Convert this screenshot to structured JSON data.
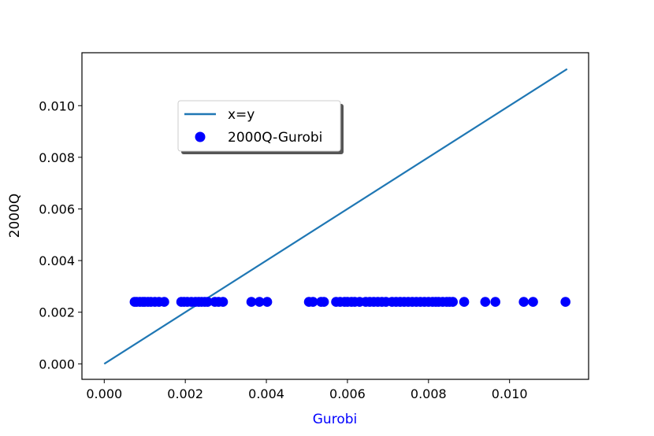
{
  "chart_data": {
    "type": "scatter",
    "xlabel": "Gurobi",
    "ylabel": "2000Q",
    "xlim": [
      -0.00055,
      0.01195
    ],
    "ylim": [
      -0.0006,
      0.01205
    ],
    "x_ticks": [
      0.0,
      0.002,
      0.004,
      0.006,
      0.008,
      0.01
    ],
    "x_tick_labels": [
      "0.000",
      "0.002",
      "0.004",
      "0.006",
      "0.008",
      "0.010"
    ],
    "y_ticks": [
      0.0,
      0.002,
      0.004,
      0.006,
      0.008,
      0.01
    ],
    "y_tick_labels": [
      "0.000",
      "0.002",
      "0.004",
      "0.006",
      "0.008",
      "0.010"
    ],
    "grid": false,
    "legend_position": "upper-left",
    "series": [
      {
        "name": "x=y",
        "kind": "line",
        "color": "#1f77b4",
        "x": [
          0.0,
          0.01142
        ],
        "y": [
          0.0,
          0.01142
        ]
      },
      {
        "name": "2000Q-Gurobi",
        "kind": "scatter",
        "color": "#0000ff",
        "x": [
          0.00075,
          0.0008,
          0.00088,
          0.00095,
          0.001,
          0.00108,
          0.00115,
          0.00125,
          0.00135,
          0.00148,
          0.0019,
          0.00197,
          0.00205,
          0.00215,
          0.00225,
          0.00233,
          0.0024,
          0.00248,
          0.00255,
          0.00273,
          0.00282,
          0.00293,
          0.00363,
          0.00383,
          0.00402,
          0.00505,
          0.00515,
          0.00535,
          0.00542,
          0.00572,
          0.00582,
          0.00593,
          0.006,
          0.0061,
          0.00618,
          0.0063,
          0.00645,
          0.00655,
          0.00665,
          0.00675,
          0.00685,
          0.00695,
          0.0071,
          0.0072,
          0.0073,
          0.0074,
          0.0075,
          0.0076,
          0.0077,
          0.0078,
          0.0079,
          0.008,
          0.0081,
          0.00818,
          0.00825,
          0.00835,
          0.00845,
          0.00852,
          0.0086,
          0.00888,
          0.0094,
          0.00965,
          0.01035,
          0.01058,
          0.01138
        ],
        "y": [
          0.0024,
          0.0024,
          0.0024,
          0.0024,
          0.0024,
          0.0024,
          0.0024,
          0.0024,
          0.0024,
          0.0024,
          0.0024,
          0.0024,
          0.0024,
          0.0024,
          0.0024,
          0.0024,
          0.0024,
          0.0024,
          0.0024,
          0.0024,
          0.0024,
          0.0024,
          0.0024,
          0.0024,
          0.0024,
          0.0024,
          0.0024,
          0.0024,
          0.0024,
          0.0024,
          0.0024,
          0.0024,
          0.0024,
          0.0024,
          0.0024,
          0.0024,
          0.0024,
          0.0024,
          0.0024,
          0.0024,
          0.0024,
          0.0024,
          0.0024,
          0.0024,
          0.0024,
          0.0024,
          0.0024,
          0.0024,
          0.0024,
          0.0024,
          0.0024,
          0.0024,
          0.0024,
          0.0024,
          0.0024,
          0.0024,
          0.0024,
          0.0024,
          0.0024,
          0.0024,
          0.0024,
          0.0024,
          0.0024,
          0.0024,
          0.0024
        ]
      }
    ],
    "xlabel_color": "#0000ff",
    "ylabel_color": "#000000"
  }
}
